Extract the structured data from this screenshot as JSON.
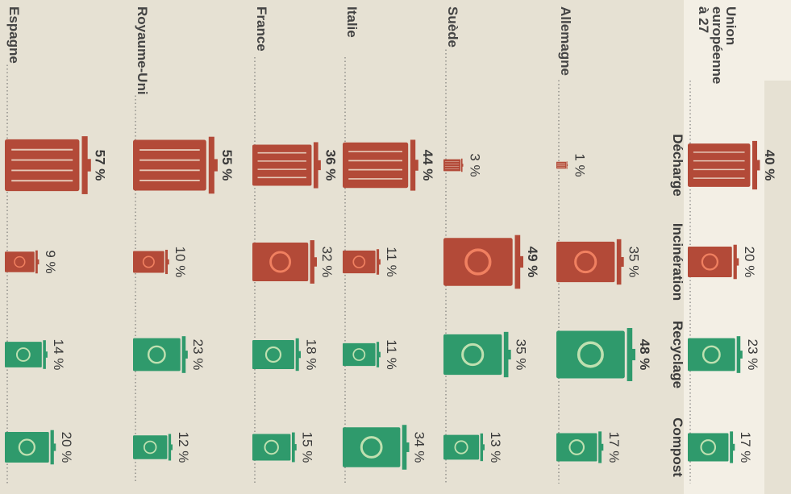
{
  "chart_data": {
    "type": "icon-bar",
    "categories": [
      "Union européenne à 27",
      "Allemagne",
      "Suède",
      "Italie",
      "France",
      "Royaume-Uni",
      "Espagne"
    ],
    "series": [
      {
        "name": "Décharge",
        "color": "#b34a38",
        "values": [
          40,
          1,
          3,
          44,
          36,
          55,
          57
        ],
        "value_labels": [
          "40 %",
          "1 %",
          "3 %",
          "44 %",
          "36 %",
          "55 %",
          "57 %"
        ]
      },
      {
        "name": "Incinération",
        "color": "#b34a38",
        "values": [
          20,
          35,
          49,
          11,
          32,
          10,
          9
        ],
        "value_labels": [
          "20 %",
          "35 %",
          "49 %",
          "11 %",
          "32 %",
          "10 %",
          "9 %"
        ]
      },
      {
        "name": "Recyclage",
        "color": "#2f9a6c",
        "values": [
          23,
          48,
          35,
          11,
          18,
          23,
          14
        ],
        "value_labels": [
          "23 %",
          "48 %",
          "35 %",
          "11 %",
          "18 %",
          "23 %",
          "14 %"
        ]
      },
      {
        "name": "Compost",
        "color": "#2f9a6c",
        "values": [
          17,
          17,
          13,
          34,
          15,
          12,
          20
        ],
        "value_labels": [
          "17 %",
          "17 %",
          "13 %",
          "34 %",
          "15 %",
          "12 %",
          "20 %"
        ]
      }
    ]
  }
}
